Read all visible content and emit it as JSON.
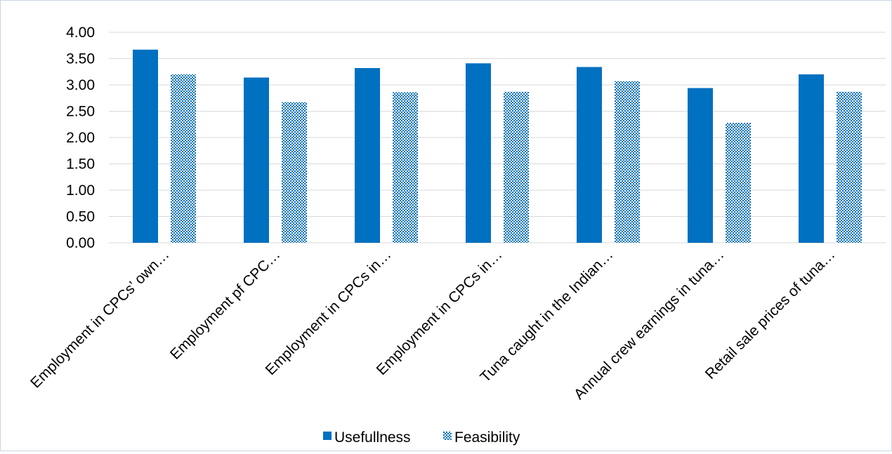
{
  "chart_data": {
    "type": "bar",
    "categories": [
      "Employment in CPCs’ own…",
      "Employment pf CPC…",
      "Employment in CPCs in…",
      "Employment in CPCs in…",
      "Tuna caught in the Indian…",
      "Annual crew earnings in tuna…",
      "Retail sale prices of tuna…"
    ],
    "series": [
      {
        "name": "Usefullness",
        "values": [
          3.67,
          3.14,
          3.32,
          3.41,
          3.34,
          2.94,
          3.2
        ],
        "color": "#0070c0",
        "pattern": "solid"
      },
      {
        "name": "Feasibility",
        "values": [
          3.2,
          2.67,
          2.86,
          2.87,
          3.07,
          2.28,
          2.87
        ],
        "color": "#0070c0",
        "pattern": "checker"
      }
    ],
    "ylim": [
      0,
      4
    ],
    "yticks": [
      "0.00",
      "0.50",
      "1.00",
      "1.50",
      "2.00",
      "2.50",
      "3.00",
      "3.50",
      "4.00"
    ],
    "ytick_values": [
      0,
      0.5,
      1,
      1.5,
      2,
      2.5,
      3,
      3.5,
      4
    ],
    "grid": true,
    "legend_position": "bottom"
  }
}
